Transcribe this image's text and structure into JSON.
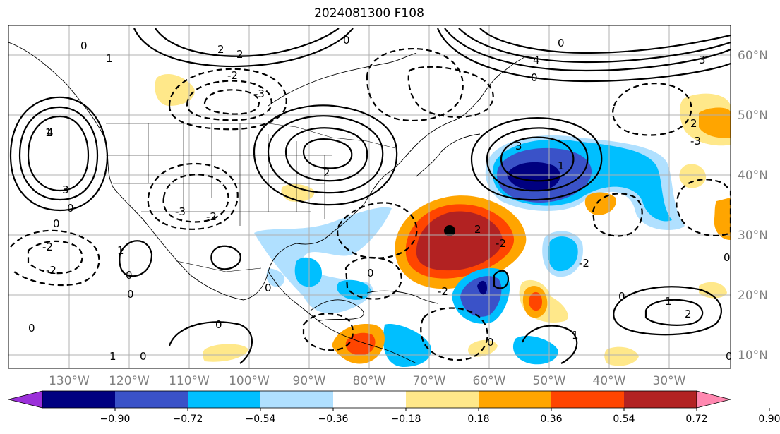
{
  "title": "2024081300 F108",
  "map": {
    "lon_labels": [
      "130°W",
      "120°W",
      "110°W",
      "100°W",
      "90°W",
      "80°W",
      "70°W",
      "60°W",
      "50°W",
      "40°W",
      "30°W"
    ],
    "lat_labels": [
      "60°N",
      "50°N",
      "40°N",
      "30°N",
      "20°N",
      "10°N"
    ],
    "contour_labels": [
      "3",
      "2",
      "1",
      "0",
      "-1",
      "-2",
      "-3",
      "4"
    ]
  },
  "colorbar": {
    "ticks": [
      "−0.90",
      "−0.72",
      "−0.54",
      "−0.36",
      "−0.18",
      "0.18",
      "0.36",
      "0.54",
      "0.72",
      "0.90"
    ],
    "colors": [
      "#9b30d9",
      "#000080",
      "#3a52c8",
      "#00bfff",
      "#b0e0ff",
      "#ffffff",
      "#ffe88a",
      "#ffa500",
      "#ff4500",
      "#b22222",
      "#ff88b0"
    ]
  },
  "colors": {
    "neg_strong": "#000080",
    "neg_mid": "#3a52c8",
    "neg": "#00bfff",
    "neg_weak": "#b0e0ff",
    "pos_weak": "#ffe88a",
    "pos": "#ffa500",
    "pos_mid": "#ff4500",
    "pos_strong": "#b22222"
  }
}
